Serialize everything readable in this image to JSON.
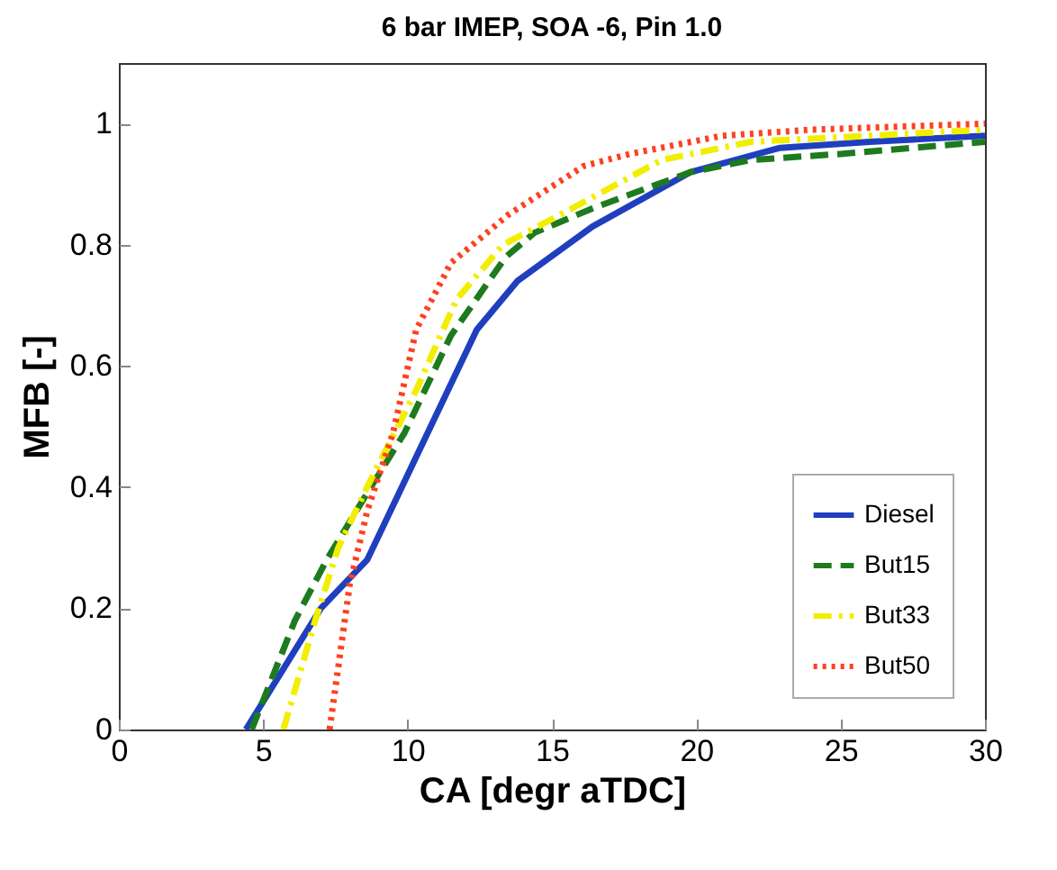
{
  "chart_data": {
    "type": "line",
    "title": "6 bar IMEP, SOA -6, Pin 1.0",
    "xlabel": "CA [degr aTDC]",
    "ylabel": "MFB [-]",
    "xlim": [
      0,
      30
    ],
    "xticks": [
      0,
      5,
      10,
      15,
      20,
      25,
      30
    ],
    "ylim": [
      0,
      1.1
    ],
    "yticks": [
      0,
      0.2,
      0.4,
      0.6,
      0.8,
      1
    ],
    "legend": "bottom right",
    "grid": false,
    "series": [
      {
        "name": "Diesel",
        "color": "#1f3fbf",
        "line_style": "solid",
        "x": [
          4.4,
          7.0,
          8.6,
          9.7,
          11.1,
          12.4,
          13.8,
          16.4,
          19.8,
          22.9,
          26.0,
          30
        ],
        "values": [
          0,
          0.2,
          0.28,
          0.39,
          0.53,
          0.66,
          0.74,
          0.83,
          0.92,
          0.96,
          0.97,
          0.98
        ]
      },
      {
        "name": "But15",
        "color": "#1e7a1e",
        "line_style": "dashed",
        "x": [
          4.6,
          6.1,
          7.2,
          8.6,
          9.9,
          11.5,
          13.4,
          14.4,
          16.4,
          19.8,
          21.9,
          25.0,
          30
        ],
        "values": [
          0,
          0.18,
          0.28,
          0.39,
          0.49,
          0.65,
          0.78,
          0.82,
          0.86,
          0.92,
          0.94,
          0.95,
          0.97
        ]
      },
      {
        "name": "But33",
        "color": "#f2ee00",
        "line_style": "dashdot",
        "x": [
          5.7,
          6.8,
          7.6,
          8.6,
          10.3,
          11.7,
          13.3,
          15.7,
          18.8,
          21.9,
          26.0,
          30
        ],
        "values": [
          0,
          0.18,
          0.3,
          0.4,
          0.56,
          0.71,
          0.8,
          0.86,
          0.94,
          0.97,
          0.98,
          0.99
        ]
      },
      {
        "name": "But50",
        "color": "#ff4020",
        "line_style": "dotted",
        "x": [
          7.3,
          8.0,
          8.6,
          9.5,
          10.3,
          11.5,
          13.5,
          16.1,
          17.7,
          20.9,
          24.0,
          30
        ],
        "values": [
          0,
          0.24,
          0.36,
          0.49,
          0.66,
          0.77,
          0.85,
          0.93,
          0.95,
          0.98,
          0.99,
          1.0
        ]
      }
    ]
  }
}
